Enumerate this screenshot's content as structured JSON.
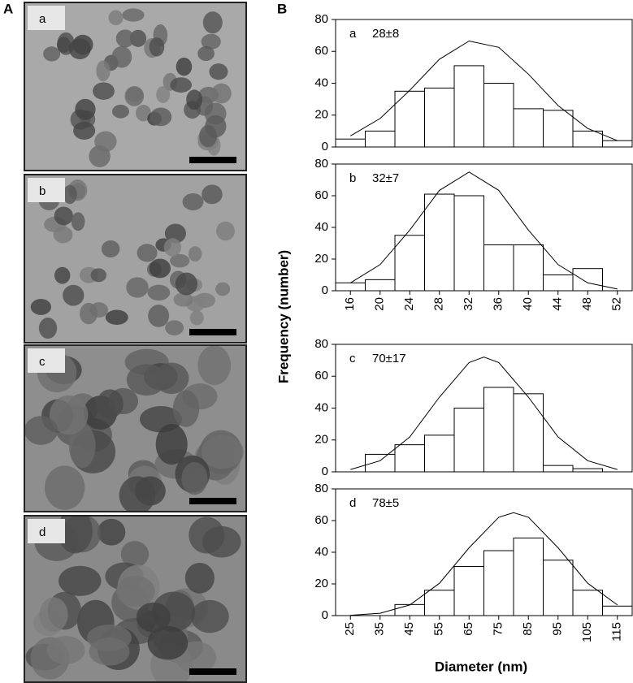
{
  "figure_labels": [
    "A",
    "B"
  ],
  "images": [
    "a",
    "b",
    "c",
    "d"
  ],
  "axis_labels": {
    "y": "Frequency (number)",
    "x": "Diameter (nm)"
  },
  "chart_data": [
    {
      "type": "histogram",
      "panel": "a",
      "annotation": "28±8",
      "bins": [
        14,
        18,
        22,
        26,
        30,
        34,
        38,
        42,
        46,
        50,
        54
      ],
      "values": [
        5,
        10,
        35,
        37,
        51,
        40,
        24,
        23,
        10,
        4
      ],
      "fit": {
        "x": [
          16,
          20,
          24,
          28,
          32,
          36,
          40,
          44,
          48,
          52
        ],
        "y": [
          7,
          17.9,
          35.6,
          55.1,
          66.5,
          62.5,
          45.7,
          26,
          11.6,
          4
        ]
      },
      "color": "#ffffff",
      "xlim": [
        14,
        54
      ],
      "ylim": [
        0,
        80
      ],
      "yticks": [
        0,
        20,
        40,
        60,
        80
      ]
    },
    {
      "type": "histogram",
      "panel": "b",
      "annotation": "32±7",
      "bins": [
        14,
        18,
        22,
        26,
        30,
        34,
        38,
        42,
        46,
        50,
        54
      ],
      "values": [
        5,
        7,
        35,
        61,
        60,
        29,
        29,
        10,
        14,
        0
      ],
      "fit": {
        "x": [
          16,
          20,
          24,
          28,
          32,
          36,
          40,
          44,
          48,
          52
        ],
        "y": [
          5,
          16.5,
          38.3,
          63.4,
          75,
          63.4,
          38.3,
          16.5,
          5,
          1.1
        ]
      },
      "color": "#ffffff",
      "xlim": [
        14,
        54
      ],
      "xticks": [
        16,
        20,
        24,
        28,
        32,
        36,
        40,
        44,
        48,
        52
      ],
      "ylim": [
        0,
        80
      ],
      "yticks": [
        0,
        20,
        40,
        60,
        80
      ]
    },
    {
      "type": "histogram",
      "panel": "c",
      "annotation": "70±17",
      "bins": [
        20,
        30,
        40,
        50,
        60,
        70,
        80,
        90,
        100,
        110,
        120
      ],
      "values": [
        0,
        11,
        17,
        23,
        40,
        53,
        49,
        4,
        2,
        0
      ],
      "fit": {
        "x": [
          25,
          35,
          45,
          55,
          65,
          70,
          75,
          85,
          95,
          105,
          115
        ],
        "y": [
          1.5,
          7,
          21.9,
          46.9,
          68.6,
          72,
          68.6,
          46.9,
          21.9,
          7,
          1.5
        ]
      },
      "color": "#ffffff",
      "xlim": [
        20,
        120
      ],
      "ylim": [
        0,
        80
      ],
      "yticks": [
        0,
        20,
        40,
        60,
        80
      ]
    },
    {
      "type": "histogram",
      "panel": "d",
      "annotation": "78±5",
      "bins": [
        20,
        30,
        40,
        50,
        60,
        70,
        80,
        90,
        100,
        110,
        120
      ],
      "values": [
        0,
        0,
        7,
        16,
        31,
        41,
        49,
        35,
        16,
        6
      ],
      "fit": {
        "x": [
          25,
          35,
          45,
          55,
          65,
          75,
          80,
          85,
          95,
          105,
          115
        ],
        "y": [
          0.2,
          1.5,
          6.7,
          20.4,
          42.8,
          62.1,
          65,
          62.1,
          42.8,
          20.4,
          6.7
        ]
      },
      "color": "#ffffff",
      "xlim": [
        20,
        120
      ],
      "xticks": [
        25,
        35,
        45,
        55,
        65,
        75,
        85,
        95,
        105,
        115
      ],
      "ylim": [
        0,
        80
      ],
      "yticks": [
        0,
        20,
        40,
        60,
        80
      ]
    }
  ]
}
